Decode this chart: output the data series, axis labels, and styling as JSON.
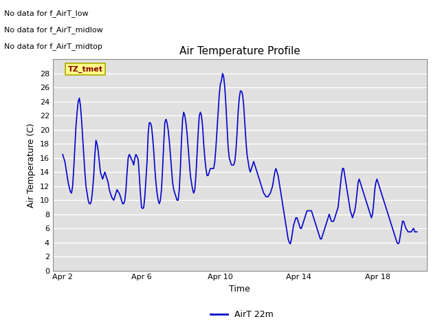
{
  "title": "Air Temperature Profile",
  "xlabel": "Time",
  "ylabel": "Air Temperature (C)",
  "legend_label": "AirT 22m",
  "legend_entries_no_data": [
    "No data for f_AirT_low",
    "No data for f_AirT_midlow",
    "No data for f_AirT_midtop"
  ],
  "watermark_text": "TZ_tmet",
  "line_color": "#0000cc",
  "background_color": "#ffffff",
  "plot_bg_color": "#e0e0e0",
  "grid_color": "#ffffff",
  "ylim": [
    0,
    30
  ],
  "yticks": [
    0,
    2,
    4,
    6,
    8,
    10,
    12,
    14,
    16,
    18,
    20,
    22,
    24,
    26,
    28
  ],
  "xlim": [
    1.5,
    20.5
  ],
  "x_tick_labels": [
    "Apr 2",
    "Apr 6",
    "Apr 10",
    "Apr 14",
    "Apr 18"
  ],
  "x_tick_positions": [
    2,
    6,
    10,
    14,
    18
  ],
  "temperature_data": [
    16.5,
    16.0,
    15.5,
    14.5,
    13.5,
    12.5,
    11.8,
    11.2,
    11.0,
    12.0,
    14.5,
    17.5,
    20.5,
    22.5,
    24.0,
    24.5,
    23.5,
    21.5,
    19.0,
    16.5,
    14.0,
    12.0,
    11.0,
    10.0,
    9.5,
    9.5,
    10.0,
    11.5,
    13.5,
    16.5,
    18.5,
    18.0,
    17.0,
    15.5,
    14.0,
    13.5,
    13.0,
    13.5,
    14.0,
    13.5,
    13.0,
    12.5,
    11.5,
    11.0,
    10.5,
    10.2,
    10.0,
    10.5,
    11.0,
    11.5,
    11.2,
    11.0,
    10.5,
    10.0,
    9.5,
    9.5,
    10.0,
    11.5,
    14.0,
    16.0,
    16.5,
    16.2,
    15.8,
    15.5,
    15.0,
    16.0,
    16.5,
    16.2,
    15.8,
    13.5,
    11.0,
    9.0,
    8.8,
    9.0,
    10.5,
    13.0,
    15.5,
    19.5,
    21.0,
    21.0,
    20.5,
    19.0,
    17.0,
    14.5,
    12.5,
    11.0,
    10.0,
    9.5,
    10.0,
    11.5,
    14.5,
    18.0,
    21.0,
    21.5,
    21.0,
    20.0,
    18.5,
    16.5,
    14.5,
    12.5,
    11.5,
    11.0,
    10.5,
    10.0,
    10.0,
    11.5,
    14.5,
    18.5,
    21.5,
    22.5,
    22.0,
    21.0,
    19.5,
    17.5,
    15.5,
    13.5,
    12.5,
    11.5,
    11.0,
    11.5,
    13.5,
    16.5,
    19.5,
    22.0,
    22.5,
    22.0,
    20.5,
    18.0,
    16.0,
    14.5,
    13.5,
    13.5,
    14.0,
    14.5,
    14.5,
    14.5,
    14.5,
    15.5,
    17.5,
    20.0,
    22.5,
    25.0,
    26.5,
    27.0,
    28.0,
    27.5,
    26.0,
    23.5,
    20.5,
    17.5,
    16.0,
    15.5,
    15.0,
    15.0,
    15.0,
    15.5,
    17.0,
    19.5,
    22.5,
    24.5,
    25.5,
    25.5,
    25.0,
    23.5,
    21.0,
    18.5,
    16.5,
    15.5,
    14.5,
    14.0,
    14.5,
    15.0,
    15.5,
    15.0,
    14.5,
    14.0,
    13.5,
    13.0,
    12.5,
    12.0,
    11.5,
    11.0,
    10.8,
    10.5,
    10.5,
    10.5,
    10.8,
    11.0,
    11.5,
    12.0,
    13.0,
    14.0,
    14.5,
    14.0,
    13.5,
    12.5,
    11.5,
    10.5,
    9.5,
    8.5,
    7.5,
    6.5,
    5.5,
    4.5,
    4.0,
    3.8,
    4.5,
    5.5,
    6.5,
    7.0,
    7.5,
    7.5,
    7.0,
    6.5,
    6.0,
    6.0,
    6.5,
    7.0,
    7.5,
    8.0,
    8.5,
    8.5,
    8.5,
    8.5,
    8.5,
    8.0,
    7.5,
    7.0,
    6.5,
    6.0,
    5.5,
    5.0,
    4.5,
    4.5,
    5.0,
    5.5,
    6.0,
    6.5,
    7.0,
    7.5,
    8.0,
    7.5,
    7.0,
    7.0,
    7.0,
    7.5,
    8.0,
    8.5,
    9.0,
    10.5,
    12.0,
    13.5,
    14.5,
    14.5,
    13.5,
    12.5,
    11.5,
    10.5,
    9.5,
    8.5,
    8.0,
    7.5,
    8.0,
    8.5,
    9.5,
    11.0,
    12.5,
    13.0,
    12.5,
    12.0,
    11.5,
    11.0,
    10.5,
    10.0,
    9.5,
    9.0,
    8.5,
    8.0,
    7.5,
    8.0,
    9.5,
    11.5,
    12.5,
    13.0,
    12.5,
    12.0,
    11.5,
    11.0,
    10.5,
    10.0,
    9.5,
    9.0,
    8.5,
    8.0,
    7.5,
    7.0,
    6.5,
    6.0,
    5.5,
    5.0,
    4.5,
    4.0,
    3.8,
    4.0,
    5.0,
    6.0,
    7.0,
    7.0,
    6.5,
    6.0,
    5.8,
    5.5,
    5.5,
    5.5,
    5.5,
    5.8,
    6.0,
    5.5,
    5.5,
    5.5
  ],
  "figsize": [
    6.4,
    4.8
  ],
  "dpi": 100
}
